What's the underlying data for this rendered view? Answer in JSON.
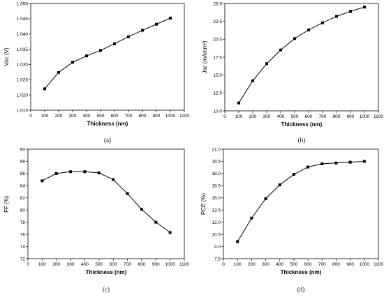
{
  "chart_data": [
    {
      "type": "line",
      "panel": "(a)",
      "xlabel": "Thickness (nm)",
      "ylabel": "Voc (V)",
      "xlim": [
        0,
        1100
      ],
      "ylim": [
        1.015,
        1.05
      ],
      "xticks": [
        "0",
        "100",
        "200",
        "300",
        "400",
        "500",
        "600",
        "700",
        "800",
        "900",
        "1000",
        "1100"
      ],
      "yticks": [
        "1.015",
        "1.020",
        "1.025",
        "1.030",
        "1.035",
        "1.040",
        "1.045",
        "1.050"
      ],
      "x": [
        100,
        200,
        300,
        400,
        500,
        600,
        700,
        800,
        900,
        1000
      ],
      "series": [
        {
          "values": [
            1.022,
            1.0274,
            1.0307,
            1.0328,
            1.0346,
            1.0368,
            1.0391,
            1.0412,
            1.0432,
            1.0452
          ]
        }
      ],
      "grid": false
    },
    {
      "type": "line",
      "panel": "(b)",
      "xlabel": "Thickness (nm)",
      "ylabel": "Jsc (mA/cm²)",
      "xlim": [
        0,
        1100
      ],
      "ylim": [
        10.0,
        25.0
      ],
      "xticks": [
        "0",
        "100",
        "200",
        "300",
        "400",
        "500",
        "600",
        "700",
        "800",
        "900",
        "1000",
        "1100"
      ],
      "yticks": [
        "10.0",
        "12.5",
        "15.0",
        "17.5",
        "20.0",
        "22.5",
        "25.0"
      ],
      "x": [
        100,
        200,
        300,
        400,
        500,
        600,
        700,
        800,
        900,
        1000
      ],
      "series": [
        {
          "values": [
            11.1,
            14.2,
            16.6,
            18.5,
            20.1,
            21.3,
            22.3,
            23.2,
            23.9,
            24.5
          ]
        }
      ],
      "grid": false
    },
    {
      "type": "line",
      "panel": "(c)",
      "xlabel": "Thickness (nm)",
      "ylabel": "FF (%)",
      "xlim": [
        0,
        1100
      ],
      "ylim": [
        72,
        90
      ],
      "xticks": [
        "0",
        "100",
        "200",
        "300",
        "400",
        "500",
        "600",
        "700",
        "800",
        "900",
        "1000",
        "1100"
      ],
      "yticks": [
        "72",
        "74",
        "76",
        "78",
        "80",
        "82",
        "84",
        "86",
        "88",
        "90"
      ],
      "x": [
        100,
        200,
        300,
        400,
        500,
        600,
        700,
        800,
        900,
        1000
      ],
      "series": [
        {
          "values": [
            84.8,
            86.0,
            86.3,
            86.3,
            86.1,
            85.0,
            82.7,
            80.1,
            78.0,
            76.3
          ]
        }
      ],
      "grid": false
    },
    {
      "type": "line",
      "panel": "(d)",
      "xlabel": "Thickness (nm)",
      "ylabel": "PCE (%)",
      "xlim": [
        0,
        1100
      ],
      "ylim": [
        7.5,
        21.0
      ],
      "xticks": [
        "0",
        "100",
        "200",
        "300",
        "400",
        "500",
        "600",
        "700",
        "800",
        "900",
        "1000",
        "1100"
      ],
      "yticks": [
        "7.5",
        "9.0",
        "10.5",
        "12.0",
        "13.5",
        "15.0",
        "16.5",
        "18.0",
        "19.5",
        "21.0"
      ],
      "x": [
        100,
        200,
        300,
        400,
        500,
        600,
        700,
        800,
        900,
        1000
      ],
      "series": [
        {
          "values": [
            9.6,
            12.5,
            14.9,
            16.6,
            17.9,
            18.8,
            19.2,
            19.3,
            19.4,
            19.5
          ]
        }
      ],
      "grid": false
    }
  ]
}
